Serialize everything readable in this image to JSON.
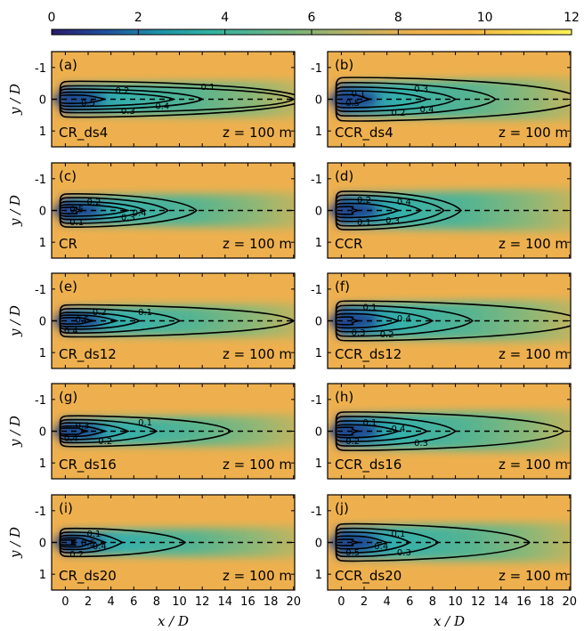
{
  "chart_data": {
    "type": "heatmap",
    "colorbar": {
      "ticks": [
        "0",
        "2",
        "4",
        "6",
        "8",
        "10",
        "12"
      ],
      "range": [
        0,
        12
      ],
      "colormap": [
        "#2b1a6b",
        "#1f4e9c",
        "#1f8fa8",
        "#2fb1a2",
        "#58b48c",
        "#8bb374",
        "#c3b160",
        "#eeb04e",
        "#f4b446",
        "#f5d44a",
        "#fff35a"
      ]
    },
    "xlabel": "x / D",
    "ylabel": "y / D",
    "xticks": [
      "0",
      "2",
      "4",
      "6",
      "8",
      "10",
      "12",
      "14",
      "16",
      "18",
      "20"
    ],
    "yticks": [
      "-1",
      "0",
      "1"
    ],
    "xlim": [
      -1.2,
      20.1
    ],
    "ylim": [
      1.5,
      -1.5
    ],
    "z_label": "z = 100 m",
    "panels": [
      {
        "label": "(a)",
        "case": "CR_ds4",
        "wake_length": 21.0,
        "wake_halfwidth": 0.48,
        "contours": [
          {
            "level": "0.1",
            "length": 21.0,
            "width": 0.56
          },
          {
            "level": "0.2",
            "length": 20.0,
            "width": 0.42
          },
          {
            "level": "0.3",
            "length": 12.0,
            "width": 0.32
          },
          {
            "level": "0.4",
            "length": 9.5,
            "width": 0.22
          },
          {
            "level": "0.5",
            "length": 3.5,
            "width": 0.13
          }
        ],
        "labels": [
          {
            "text": "0.1",
            "x": 12.5,
            "y": -0.4
          },
          {
            "text": "0.2",
            "x": 5.0,
            "y": -0.3
          },
          {
            "text": "0.5",
            "x": 2.0,
            "y": 0.1
          },
          {
            "text": "0.4",
            "x": 8.5,
            "y": 0.2
          },
          {
            "text": "0.3",
            "x": 5.5,
            "y": 0.35
          }
        ]
      },
      {
        "label": "(b)",
        "case": "CCR_ds4",
        "wake_length": 21.0,
        "wake_halfwidth": 0.55,
        "contours": [
          {
            "level": "0.1",
            "length": 21.0,
            "width": 0.68
          },
          {
            "level": "0.2",
            "length": 13.5,
            "width": 0.52
          },
          {
            "level": "0.3",
            "length": 10.0,
            "width": 0.38
          },
          {
            "level": "0.4",
            "length": 7.5,
            "width": 0.26
          },
          {
            "level": "0.5",
            "length": 2.5,
            "width": 0.14
          }
        ],
        "labels": [
          {
            "text": "0.1",
            "x": 1.5,
            "y": -0.2
          },
          {
            "text": "0.3",
            "x": 7.0,
            "y": -0.35
          },
          {
            "text": "0.5",
            "x": 1.0,
            "y": 0.1
          },
          {
            "text": "0.2",
            "x": 5.0,
            "y": 0.4
          },
          {
            "text": "0.4",
            "x": 7.5,
            "y": 0.3
          }
        ]
      },
      {
        "label": "(c)",
        "case": "CR",
        "wake_length": 21.0,
        "wake_halfwidth": 0.46,
        "contours": [
          {
            "level": "0.1",
            "length": 11.5,
            "width": 0.52
          },
          {
            "level": "0.2",
            "length": 9.0,
            "width": 0.4
          },
          {
            "level": "0.3",
            "length": 7.0,
            "width": 0.28
          },
          {
            "level": "0.4",
            "length": 5.5,
            "width": 0.18
          },
          {
            "level": "0.5",
            "length": 1.5,
            "width": 0.1
          }
        ],
        "labels": [
          {
            "text": "0.2",
            "x": 2.5,
            "y": -0.3
          },
          {
            "text": "0.5",
            "x": 1.0,
            "y": -0.05
          },
          {
            "text": "0.4",
            "x": 6.5,
            "y": 0.05
          },
          {
            "text": "0.3",
            "x": 5.5,
            "y": 0.2
          },
          {
            "text": "0.1",
            "x": 1.0,
            "y": 0.35
          }
        ]
      },
      {
        "label": "(d)",
        "case": "CCR",
        "wake_length": 21.0,
        "wake_halfwidth": 0.55,
        "contours": [
          {
            "level": "0.1",
            "length": 10.5,
            "width": 0.6
          },
          {
            "level": "0.2",
            "length": 9.0,
            "width": 0.48
          },
          {
            "level": "0.3",
            "length": 7.0,
            "width": 0.34
          },
          {
            "level": "0.4",
            "length": 5.0,
            "width": 0.22
          },
          {
            "level": "0.5",
            "length": 1.5,
            "width": 0.12
          }
        ],
        "labels": [
          {
            "text": "0.2",
            "x": 2.0,
            "y": -0.35
          },
          {
            "text": "0.4",
            "x": 5.5,
            "y": -0.3
          },
          {
            "text": "0.1",
            "x": 2.0,
            "y": 0.35
          },
          {
            "text": "0.3",
            "x": 4.5,
            "y": 0.3
          }
        ]
      },
      {
        "label": "(e)",
        "case": "CR_ds12",
        "wake_length": 21.0,
        "wake_halfwidth": 0.44,
        "contours": [
          {
            "level": "0.1",
            "length": 20.0,
            "width": 0.5
          },
          {
            "level": "0.2",
            "length": 10.0,
            "width": 0.38
          },
          {
            "level": "0.3",
            "length": 6.5,
            "width": 0.26
          },
          {
            "level": "0.4",
            "length": 4.5,
            "width": 0.18
          },
          {
            "level": "0.5",
            "length": 2.5,
            "width": 0.1
          }
        ],
        "labels": [
          {
            "text": "0.2",
            "x": 3.0,
            "y": -0.3
          },
          {
            "text": "0.1",
            "x": 7.0,
            "y": -0.3
          },
          {
            "text": "0.5",
            "x": 1.5,
            "y": -0.05
          },
          {
            "text": "0.4",
            "x": 0.5,
            "y": 0.3
          }
        ]
      },
      {
        "label": "(f)",
        "case": "CCR_ds12",
        "wake_length": 21.0,
        "wake_halfwidth": 0.55,
        "contours": [
          {
            "level": "0.1",
            "length": 21.0,
            "width": 0.62
          },
          {
            "level": "0.2",
            "length": 11.5,
            "width": 0.48
          },
          {
            "level": "0.3",
            "length": 8.0,
            "width": 0.34
          },
          {
            "level": "0.4",
            "length": 5.0,
            "width": 0.22
          },
          {
            "level": "0.5",
            "length": 1.5,
            "width": 0.12
          }
        ],
        "labels": [
          {
            "text": "0.1",
            "x": 2.5,
            "y": -0.45
          },
          {
            "text": "0.4",
            "x": 5.5,
            "y": -0.1
          },
          {
            "text": "0.3",
            "x": 1.5,
            "y": 0.35
          },
          {
            "text": "0.2",
            "x": 4.0,
            "y": 0.4
          }
        ]
      },
      {
        "label": "(g)",
        "case": "CR_ds16",
        "wake_length": 21.0,
        "wake_halfwidth": 0.42,
        "contours": [
          {
            "level": "0.1",
            "length": 14.5,
            "width": 0.48
          },
          {
            "level": "0.2",
            "length": 8.0,
            "width": 0.36
          },
          {
            "level": "0.3",
            "length": 5.5,
            "width": 0.26
          },
          {
            "level": "0.4",
            "length": 3.5,
            "width": 0.16
          },
          {
            "level": "0.5",
            "length": 2.0,
            "width": 0.1
          }
        ],
        "labels": [
          {
            "text": "0.3",
            "x": 1.5,
            "y": -0.2
          },
          {
            "text": "0.1",
            "x": 7.0,
            "y": -0.3
          },
          {
            "text": "0.4",
            "x": 0.5,
            "y": 0.2
          },
          {
            "text": "0.2",
            "x": 3.5,
            "y": 0.3
          }
        ]
      },
      {
        "label": "(h)",
        "case": "CCR_ds16",
        "wake_length": 21.0,
        "wake_halfwidth": 0.55,
        "contours": [
          {
            "level": "0.1",
            "length": 19.5,
            "width": 0.6
          },
          {
            "level": "0.2",
            "length": 10.0,
            "width": 0.46
          },
          {
            "level": "0.3",
            "length": 7.5,
            "width": 0.32
          },
          {
            "level": "0.4",
            "length": 5.0,
            "width": 0.2
          },
          {
            "level": "0.5",
            "length": 1.5,
            "width": 0.12
          }
        ],
        "labels": [
          {
            "text": "0.1",
            "x": 2.5,
            "y": -0.3
          },
          {
            "text": "0.4",
            "x": 5.0,
            "y": -0.1
          },
          {
            "text": "0.2",
            "x": 1.0,
            "y": 0.3
          },
          {
            "text": "0.3",
            "x": 7.0,
            "y": 0.35
          }
        ]
      },
      {
        "label": "(i)",
        "case": "CR_ds20",
        "wake_length": 21.0,
        "wake_halfwidth": 0.4,
        "contours": [
          {
            "level": "0.1",
            "length": 10.5,
            "width": 0.44
          },
          {
            "level": "0.2",
            "length": 5.0,
            "width": 0.32
          },
          {
            "level": "0.3",
            "length": 3.5,
            "width": 0.22
          },
          {
            "level": "0.4",
            "length": 2.5,
            "width": 0.14
          },
          {
            "level": "0.5",
            "length": 1.0,
            "width": 0.08
          }
        ],
        "labels": [
          {
            "text": "0.1",
            "x": 2.5,
            "y": -0.3
          },
          {
            "text": "0.5",
            "x": 2.0,
            "y": 0.0
          },
          {
            "text": "0.4",
            "x": 3.0,
            "y": 0.1
          },
          {
            "text": "0.2",
            "x": 1.0,
            "y": 0.35
          }
        ]
      },
      {
        "label": "(j)",
        "case": "CCR_ds20",
        "wake_length": 21.0,
        "wake_halfwidth": 0.52,
        "contours": [
          {
            "level": "0.1",
            "length": 16.5,
            "width": 0.58
          },
          {
            "level": "0.2",
            "length": 8.5,
            "width": 0.44
          },
          {
            "level": "0.3",
            "length": 6.0,
            "width": 0.32
          },
          {
            "level": "0.4",
            "length": 4.0,
            "width": 0.2
          },
          {
            "level": "0.5",
            "length": 1.5,
            "width": 0.1
          }
        ],
        "labels": [
          {
            "text": "0.1",
            "x": 5.0,
            "y": -0.3
          },
          {
            "text": "0.5",
            "x": 1.0,
            "y": 0.3
          },
          {
            "text": "0.4",
            "x": 3.5,
            "y": 0.1
          },
          {
            "text": "0.3",
            "x": 5.5,
            "y": 0.3
          }
        ]
      }
    ]
  }
}
